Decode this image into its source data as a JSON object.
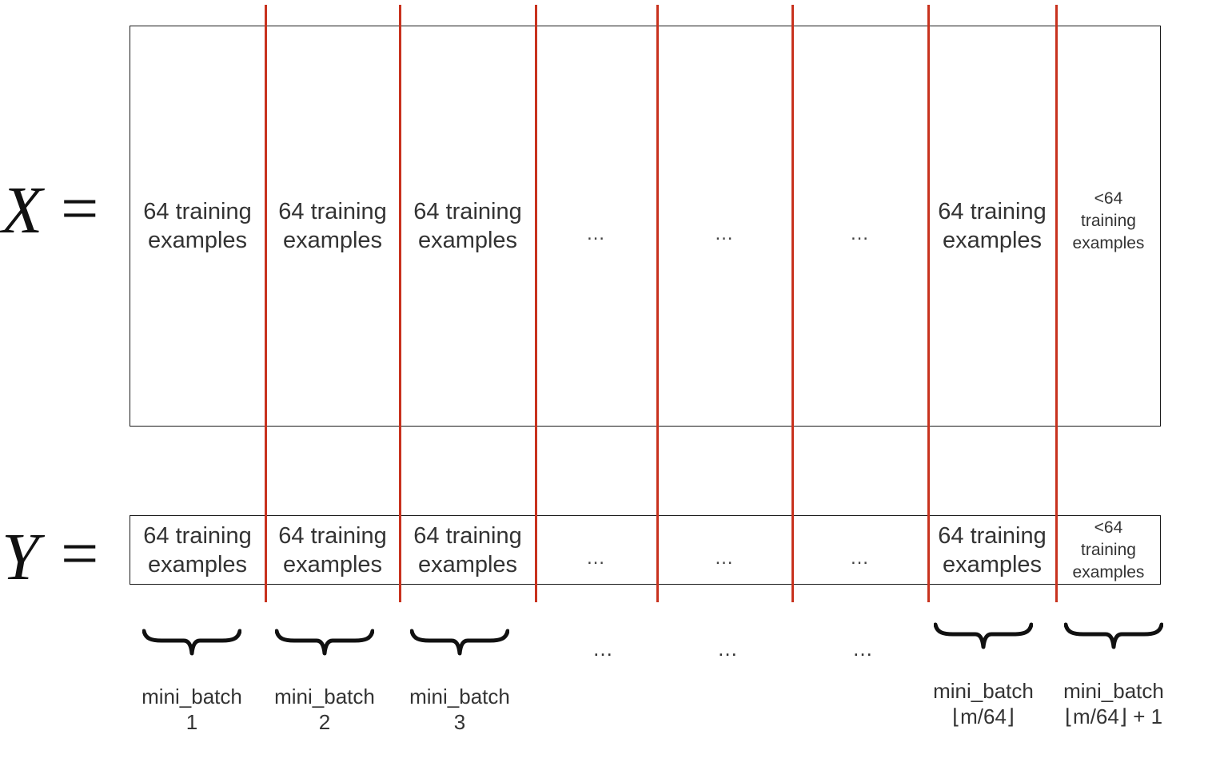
{
  "matrices": {
    "x": {
      "symbol": "X",
      "equals": "="
    },
    "y": {
      "symbol": "Y",
      "equals": "="
    }
  },
  "x_row": [
    {
      "text": "64 training\nexamples",
      "kind": "big"
    },
    {
      "text": "64 training\nexamples",
      "kind": "big"
    },
    {
      "text": "64 training\nexamples",
      "kind": "big"
    },
    {
      "text": "…",
      "kind": "ellipsis"
    },
    {
      "text": "…",
      "kind": "ellipsis"
    },
    {
      "text": "…",
      "kind": "ellipsis"
    },
    {
      "text": "64 training\nexamples",
      "kind": "big"
    },
    {
      "text": "<64\ntraining\nexamples",
      "kind": "small"
    }
  ],
  "y_row": [
    {
      "text": "64 training\nexamples",
      "kind": "big"
    },
    {
      "text": "64 training\nexamples",
      "kind": "big"
    },
    {
      "text": "64 training\nexamples",
      "kind": "big"
    },
    {
      "text": "…",
      "kind": "ellipsis"
    },
    {
      "text": "…",
      "kind": "ellipsis"
    },
    {
      "text": "…",
      "kind": "ellipsis"
    },
    {
      "text": "64 training\nexamples",
      "kind": "big"
    },
    {
      "text": "<64\ntraining\nexamples",
      "kind": "small"
    }
  ],
  "mini_batches": [
    {
      "label": "mini_batch\n1",
      "brace": true
    },
    {
      "label": "mini_batch\n2",
      "brace": true
    },
    {
      "label": "mini_batch\n3",
      "brace": true
    },
    {
      "label": "…",
      "brace": false
    },
    {
      "label": "…",
      "brace": false
    },
    {
      "label": "…",
      "brace": false
    },
    {
      "label": "mini_batch\n⌊m/64⌋",
      "brace": true
    },
    {
      "label": "mini_batch\n⌊m/64⌋ + 1",
      "brace": true
    }
  ],
  "colors": {
    "divider": "#c8321e",
    "border": "#1a1a1a",
    "text": "#333333"
  }
}
